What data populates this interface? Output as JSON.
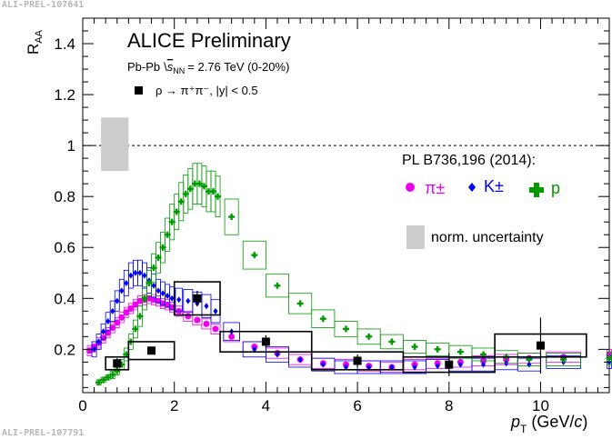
{
  "figure": {
    "top_id": "ALI-PREL-107641",
    "bottom_id": "ALI-PREL-107791",
    "experiment": "ALICE Preliminary",
    "system_prefix": "Pb-Pb",
    "system_energy": "= 2.76 TeV (0-20%)",
    "measurement_legend": "ρ → π⁺π⁻, |y| < 0.5",
    "reference_title": "PL B736,196 (2014):",
    "norm_label": "norm. uncertainty"
  },
  "chart_data": {
    "type": "scatter",
    "xlabel": "p_T (GeV/c)",
    "ylabel": "R_AA",
    "xlim": [
      0,
      11.5
    ],
    "ylim": [
      0.03,
      1.5
    ],
    "xticks": [
      0,
      2,
      4,
      6,
      8,
      10
    ],
    "yticks": [
      0.2,
      0.4,
      0.6,
      0.8,
      1.0,
      1.2,
      1.4
    ],
    "xtick_labels": [
      "0",
      "2",
      "4",
      "6",
      "8",
      "10"
    ],
    "ytick_labels": [
      "0.2",
      "0.4",
      "0.6",
      "0.8",
      "1",
      "1.2",
      "1.4"
    ],
    "reference_line": 1.0,
    "norm_uncertainty": {
      "x": [
        0.4,
        1.0
      ],
      "y": [
        0.9,
        1.11
      ]
    },
    "rho": {
      "name": "ρ → π⁺π⁻, |y| < 0.5",
      "color": "#000000",
      "points": [
        {
          "x": 0.75,
          "y": 0.145,
          "xlo": 0.5,
          "xhi": 1.0,
          "stat": 0.02,
          "sys": 0.025
        },
        {
          "x": 1.5,
          "y": 0.195,
          "xlo": 1.0,
          "xhi": 2.0,
          "stat": 0.015,
          "sys": 0.035
        },
        {
          "x": 2.5,
          "y": 0.4,
          "xlo": 2.0,
          "xhi": 3.0,
          "stat": 0.03,
          "sys": 0.065
        },
        {
          "x": 4.0,
          "y": 0.23,
          "xlo": 3.0,
          "xhi": 5.0,
          "stat": 0.025,
          "sys": 0.04
        },
        {
          "x": 6.0,
          "y": 0.155,
          "xlo": 5.0,
          "xhi": 7.0,
          "stat": 0.025,
          "sys": 0.035
        },
        {
          "x": 8.0,
          "y": 0.14,
          "xlo": 7.0,
          "xhi": 9.0,
          "stat": 0.045,
          "sys": 0.03
        },
        {
          "x": 10.0,
          "y": 0.215,
          "xlo": 9.0,
          "xhi": 11.0,
          "stat": 0.11,
          "sys": 0.045
        }
      ]
    },
    "series": [
      {
        "name": "π±",
        "color": "#ee00ee",
        "marker": "circle",
        "x": [
          0.15,
          0.25,
          0.35,
          0.45,
          0.55,
          0.65,
          0.75,
          0.85,
          0.95,
          1.05,
          1.15,
          1.25,
          1.35,
          1.45,
          1.55,
          1.65,
          1.75,
          1.85,
          1.95,
          2.1,
          2.3,
          2.5,
          2.7,
          2.9,
          3.25,
          3.75,
          4.25,
          4.75,
          5.25,
          5.75,
          6.25,
          6.75,
          7.25,
          7.75,
          8.25,
          8.75,
          9.25,
          9.75,
          10.5,
          11.5
        ],
        "y": [
          0.195,
          0.21,
          0.225,
          0.245,
          0.265,
          0.285,
          0.305,
          0.325,
          0.345,
          0.36,
          0.375,
          0.39,
          0.395,
          0.4,
          0.395,
          0.39,
          0.38,
          0.375,
          0.365,
          0.35,
          0.33,
          0.315,
          0.3,
          0.28,
          0.25,
          0.21,
          0.185,
          0.16,
          0.145,
          0.14,
          0.135,
          0.13,
          0.14,
          0.145,
          0.15,
          0.155,
          0.16,
          0.165,
          0.17,
          0.18
        ],
        "sys": [
          0.02,
          0.02,
          0.02,
          0.02,
          0.02,
          0.02,
          0.02,
          0.02,
          0.02,
          0.02,
          0.02,
          0.02,
          0.02,
          0.02,
          0.02,
          0.02,
          0.02,
          0.02,
          0.02,
          0.02,
          0.02,
          0.02,
          0.02,
          0.02,
          0.02,
          0.02,
          0.02,
          0.02,
          0.02,
          0.02,
          0.02,
          0.02,
          0.02,
          0.02,
          0.02,
          0.02,
          0.02,
          0.02,
          0.02,
          0.02
        ]
      },
      {
        "name": "K±",
        "color": "#0000ee",
        "marker": "diamond",
        "x": [
          0.25,
          0.35,
          0.45,
          0.55,
          0.65,
          0.75,
          0.85,
          0.95,
          1.05,
          1.15,
          1.25,
          1.35,
          1.45,
          1.55,
          1.65,
          1.75,
          1.85,
          1.95,
          2.1,
          2.3,
          2.5,
          2.7,
          2.9,
          3.25,
          3.75,
          4.25,
          4.75,
          5.25,
          5.75,
          6.25,
          6.75,
          7.25,
          7.75,
          8.25,
          8.75,
          9.25,
          9.75,
          10.5,
          11.5
        ],
        "y": [
          0.2,
          0.23,
          0.27,
          0.31,
          0.35,
          0.39,
          0.43,
          0.46,
          0.49,
          0.5,
          0.5,
          0.49,
          0.47,
          0.45,
          0.43,
          0.42,
          0.41,
          0.4,
          0.395,
          0.39,
          0.38,
          0.37,
          0.35,
          0.27,
          0.2,
          0.18,
          0.16,
          0.14,
          0.13,
          0.13,
          0.13,
          0.13,
          0.135,
          0.14,
          0.14,
          0.145,
          0.14,
          0.15,
          0.15
        ],
        "sys": [
          0.03,
          0.03,
          0.03,
          0.035,
          0.04,
          0.04,
          0.045,
          0.05,
          0.05,
          0.05,
          0.05,
          0.05,
          0.05,
          0.045,
          0.045,
          0.045,
          0.045,
          0.045,
          0.045,
          0.045,
          0.045,
          0.045,
          0.045,
          0.035,
          0.03,
          0.03,
          0.03,
          0.025,
          0.025,
          0.025,
          0.025,
          0.025,
          0.025,
          0.025,
          0.025,
          0.025,
          0.025,
          0.025,
          0.025
        ]
      },
      {
        "name": "p",
        "color": "#009900",
        "marker": "cross",
        "x": [
          0.35,
          0.45,
          0.55,
          0.65,
          0.75,
          0.85,
          0.95,
          1.05,
          1.15,
          1.25,
          1.35,
          1.45,
          1.55,
          1.65,
          1.75,
          1.85,
          1.95,
          2.05,
          2.15,
          2.25,
          2.35,
          2.45,
          2.55,
          2.65,
          2.75,
          2.85,
          2.95,
          3.25,
          3.75,
          4.25,
          4.75,
          5.25,
          5.75,
          6.25,
          6.75,
          7.25,
          7.75,
          8.25,
          8.75,
          9.25,
          9.75,
          10.5,
          11.5
        ],
        "y": [
          0.07,
          0.08,
          0.09,
          0.1,
          0.115,
          0.14,
          0.18,
          0.23,
          0.28,
          0.33,
          0.4,
          0.46,
          0.52,
          0.56,
          0.6,
          0.65,
          0.7,
          0.74,
          0.78,
          0.81,
          0.83,
          0.85,
          0.85,
          0.84,
          0.82,
          0.82,
          0.8,
          0.72,
          0.57,
          0.45,
          0.38,
          0.32,
          0.28,
          0.25,
          0.23,
          0.21,
          0.2,
          0.19,
          0.18,
          0.17,
          0.16,
          0.16,
          0.165
        ],
        "sys": [
          0.01,
          0.01,
          0.01,
          0.015,
          0.015,
          0.02,
          0.025,
          0.03,
          0.035,
          0.04,
          0.045,
          0.05,
          0.055,
          0.06,
          0.06,
          0.065,
          0.07,
          0.07,
          0.075,
          0.075,
          0.08,
          0.08,
          0.08,
          0.08,
          0.08,
          0.08,
          0.08,
          0.07,
          0.055,
          0.045,
          0.04,
          0.035,
          0.03,
          0.03,
          0.028,
          0.025,
          0.025,
          0.025,
          0.025,
          0.025,
          0.025,
          0.025,
          0.025
        ]
      }
    ],
    "legend": {
      "placement": "right",
      "entries": [
        "π±",
        "K±",
        "p"
      ]
    }
  }
}
